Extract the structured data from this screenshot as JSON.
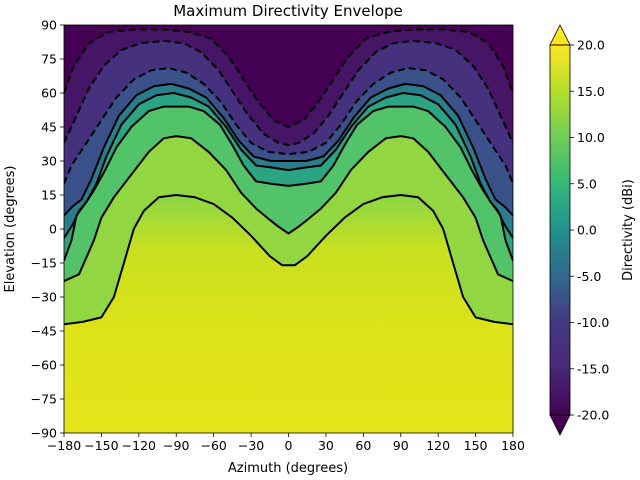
{
  "chart_data": {
    "type": "contour",
    "title": "Maximum Directivity Envelope",
    "xlabel": "Azimuth (degrees)",
    "ylabel": "Elevation (degrees)",
    "xlim": [
      -180,
      180
    ],
    "ylim": [
      -90,
      90
    ],
    "x_ticks": [
      -180,
      -150,
      -120,
      -90,
      -60,
      -30,
      0,
      30,
      60,
      90,
      120,
      150,
      180
    ],
    "x_tick_labels": [
      "−180",
      "−150",
      "−120",
      "−90",
      "−60",
      "−30",
      "0",
      "30",
      "60",
      "90",
      "120",
      "150",
      "180"
    ],
    "y_ticks": [
      90,
      75,
      60,
      45,
      30,
      15,
      0,
      -15,
      -30,
      -45,
      -60,
      -75,
      -90
    ],
    "y_tick_labels": [
      "90",
      "75",
      "60",
      "45",
      "30",
      "15",
      "0",
      "−15",
      "−30",
      "−45",
      "−60",
      "−75",
      "−90"
    ],
    "colormap": "viridis",
    "colorbar": {
      "label": "Directivity (dBi)",
      "range": [
        -20,
        20
      ],
      "ticks": [
        20,
        15,
        10,
        5,
        0,
        -5,
        -10,
        -15,
        -20
      ],
      "tick_labels": [
        "20.0",
        "15.0",
        "10.0",
        "5.0",
        "0.0",
        "-5.0",
        "-10.0",
        "-15.0",
        "-20.0"
      ],
      "extend": "both"
    },
    "contour_levels": [
      {
        "level": 15,
        "style": "solid",
        "points": [
          [
            -180,
            -42
          ],
          [
            -165,
            -41
          ],
          [
            -150,
            -39
          ],
          [
            -140,
            -30
          ],
          [
            -132,
            -15
          ],
          [
            -124,
            0
          ],
          [
            -116,
            8
          ],
          [
            -104,
            14
          ],
          [
            -90,
            15
          ],
          [
            -75,
            14
          ],
          [
            -60,
            11
          ],
          [
            -45,
            5
          ],
          [
            -30,
            -3
          ],
          [
            -15,
            -12
          ],
          [
            -5,
            -16
          ],
          [
            0,
            -16
          ],
          [
            5,
            -16
          ],
          [
            15,
            -12
          ],
          [
            30,
            -3
          ],
          [
            45,
            5
          ],
          [
            60,
            11
          ],
          [
            75,
            14
          ],
          [
            90,
            15
          ],
          [
            104,
            14
          ],
          [
            116,
            8
          ],
          [
            124,
            0
          ],
          [
            132,
            -15
          ],
          [
            140,
            -30
          ],
          [
            150,
            -39
          ],
          [
            165,
            -41
          ],
          [
            180,
            -42
          ]
        ]
      },
      {
        "level": 10,
        "style": "solid",
        "points": [
          [
            -180,
            -23
          ],
          [
            -168,
            -20
          ],
          [
            -156,
            -5
          ],
          [
            -150,
            5
          ],
          [
            -140,
            14
          ],
          [
            -126,
            24
          ],
          [
            -112,
            34
          ],
          [
            -100,
            40
          ],
          [
            -90,
            41
          ],
          [
            -78,
            40
          ],
          [
            -64,
            34
          ],
          [
            -50,
            26
          ],
          [
            -38,
            16
          ],
          [
            -26,
            9
          ],
          [
            -15,
            4
          ],
          [
            -8,
            1
          ],
          [
            0,
            -2
          ],
          [
            8,
            1
          ],
          [
            15,
            4
          ],
          [
            26,
            9
          ],
          [
            38,
            16
          ],
          [
            50,
            26
          ],
          [
            64,
            34
          ],
          [
            78,
            40
          ],
          [
            90,
            41
          ],
          [
            100,
            40
          ],
          [
            112,
            34
          ],
          [
            126,
            24
          ],
          [
            140,
            14
          ],
          [
            150,
            5
          ],
          [
            156,
            -5
          ],
          [
            168,
            -20
          ],
          [
            180,
            -23
          ]
        ]
      },
      {
        "level": 5,
        "style": "solid",
        "points": [
          [
            -180,
            -14
          ],
          [
            -174,
            -5
          ],
          [
            -170,
            6
          ],
          [
            -162,
            12
          ],
          [
            -155,
            18
          ],
          [
            -147,
            26
          ],
          [
            -138,
            36
          ],
          [
            -126,
            45
          ],
          [
            -112,
            52
          ],
          [
            -100,
            54
          ],
          [
            -90,
            54
          ],
          [
            -80,
            54
          ],
          [
            -68,
            52
          ],
          [
            -55,
            46
          ],
          [
            -45,
            37
          ],
          [
            -36,
            28
          ],
          [
            -26,
            21
          ],
          [
            -14,
            20
          ],
          [
            0,
            19
          ],
          [
            14,
            20
          ],
          [
            26,
            21
          ],
          [
            36,
            28
          ],
          [
            45,
            37
          ],
          [
            55,
            46
          ],
          [
            68,
            52
          ],
          [
            80,
            54
          ],
          [
            90,
            54
          ],
          [
            100,
            54
          ],
          [
            112,
            52
          ],
          [
            126,
            45
          ],
          [
            138,
            36
          ],
          [
            147,
            26
          ],
          [
            155,
            18
          ],
          [
            162,
            12
          ],
          [
            170,
            6
          ],
          [
            174,
            -5
          ],
          [
            180,
            -14
          ]
        ]
      },
      {
        "level": 0,
        "style": "solid",
        "points": [
          [
            -180,
            -4
          ],
          [
            -173,
            2
          ],
          [
            -168,
            8
          ],
          [
            -162,
            12
          ],
          [
            -154,
            20
          ],
          [
            -146,
            32
          ],
          [
            -134,
            46
          ],
          [
            -120,
            55
          ],
          [
            -106,
            59
          ],
          [
            -92,
            60
          ],
          [
            -78,
            58
          ],
          [
            -64,
            54
          ],
          [
            -50,
            45
          ],
          [
            -38,
            35
          ],
          [
            -26,
            28
          ],
          [
            -12,
            27
          ],
          [
            0,
            26
          ],
          [
            12,
            27
          ],
          [
            26,
            28
          ],
          [
            38,
            35
          ],
          [
            50,
            45
          ],
          [
            64,
            54
          ],
          [
            78,
            58
          ],
          [
            92,
            60
          ],
          [
            106,
            59
          ],
          [
            120,
            55
          ],
          [
            134,
            46
          ],
          [
            146,
            32
          ],
          [
            154,
            20
          ],
          [
            162,
            12
          ],
          [
            168,
            8
          ],
          [
            173,
            2
          ],
          [
            180,
            -4
          ]
        ]
      },
      {
        "level": -5,
        "style": "solid",
        "points": [
          [
            -180,
            6
          ],
          [
            -173,
            10
          ],
          [
            -166,
            13
          ],
          [
            -158,
            22
          ],
          [
            -148,
            36
          ],
          [
            -136,
            50
          ],
          [
            -122,
            59
          ],
          [
            -108,
            63
          ],
          [
            -94,
            64
          ],
          [
            -80,
            62
          ],
          [
            -66,
            58
          ],
          [
            -52,
            49
          ],
          [
            -40,
            39
          ],
          [
            -28,
            32
          ],
          [
            -14,
            30
          ],
          [
            0,
            30
          ],
          [
            14,
            30
          ],
          [
            28,
            32
          ],
          [
            40,
            39
          ],
          [
            52,
            49
          ],
          [
            66,
            58
          ],
          [
            80,
            62
          ],
          [
            94,
            64
          ],
          [
            108,
            63
          ],
          [
            122,
            59
          ],
          [
            136,
            50
          ],
          [
            148,
            36
          ],
          [
            158,
            22
          ],
          [
            166,
            13
          ],
          [
            173,
            10
          ],
          [
            180,
            6
          ]
        ]
      },
      {
        "level": -10,
        "style": "dashed",
        "points": [
          [
            -180,
            20
          ],
          [
            -174,
            28
          ],
          [
            -162,
            38
          ],
          [
            -150,
            48
          ],
          [
            -138,
            58
          ],
          [
            -124,
            66
          ],
          [
            -110,
            70
          ],
          [
            -96,
            71
          ],
          [
            -82,
            69
          ],
          [
            -68,
            64
          ],
          [
            -54,
            56
          ],
          [
            -42,
            46
          ],
          [
            -30,
            38
          ],
          [
            -16,
            34
          ],
          [
            0,
            33
          ],
          [
            16,
            34
          ],
          [
            30,
            38
          ],
          [
            42,
            46
          ],
          [
            54,
            56
          ],
          [
            68,
            64
          ],
          [
            82,
            69
          ],
          [
            96,
            71
          ],
          [
            110,
            70
          ],
          [
            124,
            66
          ],
          [
            138,
            58
          ],
          [
            150,
            48
          ],
          [
            162,
            38
          ],
          [
            174,
            28
          ],
          [
            180,
            20
          ]
        ]
      },
      {
        "level": -15,
        "style": "dashed",
        "points": [
          [
            -180,
            38
          ],
          [
            -170,
            50
          ],
          [
            -160,
            62
          ],
          [
            -148,
            72
          ],
          [
            -134,
            79
          ],
          [
            -118,
            82
          ],
          [
            -100,
            83
          ],
          [
            -84,
            82
          ],
          [
            -70,
            78
          ],
          [
            -56,
            70
          ],
          [
            -44,
            60
          ],
          [
            -32,
            50
          ],
          [
            -20,
            42
          ],
          [
            -8,
            38
          ],
          [
            0,
            37
          ],
          [
            8,
            38
          ],
          [
            20,
            42
          ],
          [
            32,
            50
          ],
          [
            44,
            60
          ],
          [
            56,
            70
          ],
          [
            70,
            78
          ],
          [
            84,
            82
          ],
          [
            100,
            83
          ],
          [
            118,
            82
          ],
          [
            134,
            79
          ],
          [
            148,
            72
          ],
          [
            160,
            62
          ],
          [
            170,
            50
          ],
          [
            180,
            38
          ]
        ]
      },
      {
        "level": -20,
        "style": "dashed",
        "points": [
          [
            -180,
            60
          ],
          [
            -172,
            72
          ],
          [
            -160,
            82
          ],
          [
            -144,
            87
          ],
          [
            -124,
            88
          ],
          [
            -100,
            88
          ],
          [
            -80,
            87
          ],
          [
            -62,
            84
          ],
          [
            -48,
            76
          ],
          [
            -36,
            66
          ],
          [
            -24,
            56
          ],
          [
            -12,
            48
          ],
          [
            0,
            45
          ],
          [
            12,
            48
          ],
          [
            24,
            56
          ],
          [
            36,
            66
          ],
          [
            48,
            76
          ],
          [
            62,
            84
          ],
          [
            80,
            87
          ],
          [
            100,
            88
          ],
          [
            124,
            88
          ],
          [
            144,
            87
          ],
          [
            160,
            82
          ],
          [
            172,
            72
          ],
          [
            180,
            60
          ]
        ]
      }
    ]
  }
}
